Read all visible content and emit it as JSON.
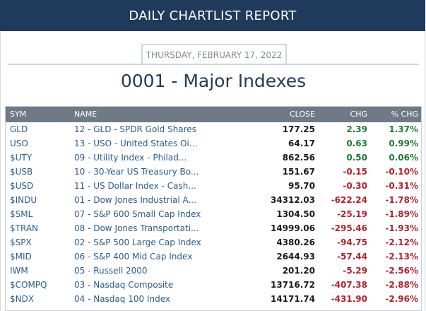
{
  "header": {
    "title": "DAILY CHARTLIST REPORT"
  },
  "report": {
    "date": "THURSDAY, FEBRUARY 17, 2022",
    "list_title": "0001 - Major Indexes"
  },
  "table": {
    "columns": {
      "sym": "SYM",
      "name": "NAME",
      "close": "CLOSE",
      "chg": "CHG",
      "pct": "% CHG"
    },
    "rows": [
      {
        "sym": "GLD",
        "name": "12 - GLD - SPDR Gold Shares",
        "close": "177.25",
        "chg": "2.39",
        "pct": "1.37%",
        "dir": "pos"
      },
      {
        "sym": "USO",
        "name": "13 - USO - United States Oi...",
        "close": "64.17",
        "chg": "0.63",
        "pct": "0.99%",
        "dir": "pos"
      },
      {
        "sym": "$UTY",
        "name": "09 - Utility Index - Philad...",
        "close": "862.56",
        "chg": "0.50",
        "pct": "0.06%",
        "dir": "pos"
      },
      {
        "sym": "$USB",
        "name": "10 - 30-Year US Treasury Bo...",
        "close": "151.67",
        "chg": "-0.15",
        "pct": "-0.10%",
        "dir": "neg"
      },
      {
        "sym": "$USD",
        "name": "11 - US Dollar Index - Cash...",
        "close": "95.70",
        "chg": "-0.30",
        "pct": "-0.31%",
        "dir": "neg"
      },
      {
        "sym": "$INDU",
        "name": "01 - Dow Jones Industrial A...",
        "close": "34312.03",
        "chg": "-622.24",
        "pct": "-1.78%",
        "dir": "neg"
      },
      {
        "sym": "$SML",
        "name": "07 - S&P 600 Small Cap Index",
        "close": "1304.50",
        "chg": "-25.19",
        "pct": "-1.89%",
        "dir": "neg"
      },
      {
        "sym": "$TRAN",
        "name": "08 - Dow Jones Transportati...",
        "close": "14999.06",
        "chg": "-295.46",
        "pct": "-1.93%",
        "dir": "neg"
      },
      {
        "sym": "$SPX",
        "name": "02 - S&P 500 Large Cap Index",
        "close": "4380.26",
        "chg": "-94.75",
        "pct": "-2.12%",
        "dir": "neg"
      },
      {
        "sym": "$MID",
        "name": "06 - S&P 400 Mid Cap Index",
        "close": "2644.93",
        "chg": "-57.44",
        "pct": "-2.13%",
        "dir": "neg"
      },
      {
        "sym": "IWM",
        "name": "05 - Russell 2000",
        "close": "201.20",
        "chg": "-5.29",
        "pct": "-2.56%",
        "dir": "neg"
      },
      {
        "sym": "$COMPQ",
        "name": "03 - Nasdaq Composite",
        "close": "13716.72",
        "chg": "-407.38",
        "pct": "-2.88%",
        "dir": "neg"
      },
      {
        "sym": "$NDX",
        "name": "04 - Nasdaq 100 Index",
        "close": "14171.74",
        "chg": "-431.90",
        "pct": "-2.96%",
        "dir": "neg"
      }
    ]
  },
  "colors": {
    "header_bg": "#1f3a5a",
    "table_header_bg": "#6f7a86",
    "positive": "#1e7a34",
    "negative": "#b3212c",
    "link": "#2a5c8c"
  }
}
